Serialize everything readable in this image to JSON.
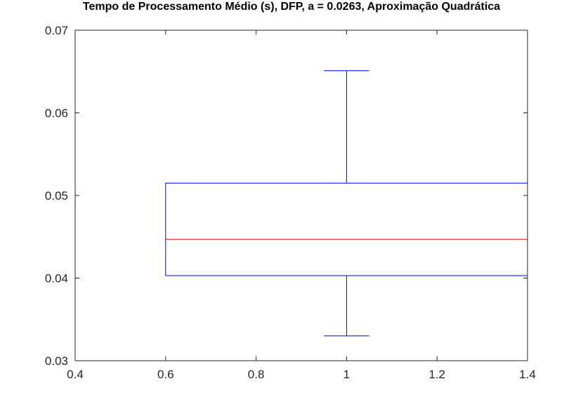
{
  "chart_data": {
    "type": "boxplot",
    "title": "Tempo de Processamento Médio (s), DFP, a = 0.0263, Aproximação Quadrática",
    "xlabel": "",
    "ylabel": "",
    "xlim": [
      0.4,
      1.4
    ],
    "ylim": [
      0.03,
      0.07
    ],
    "x_ticks": [
      0.4,
      0.6,
      0.8,
      1.0,
      1.2,
      1.4
    ],
    "x_tick_labels": [
      "0.4",
      "0.6",
      "0.8",
      "1",
      "1.2",
      "1.4"
    ],
    "y_ticks": [
      0.03,
      0.04,
      0.05,
      0.06,
      0.07
    ],
    "y_tick_labels": [
      "0.03",
      "0.04",
      "0.05",
      "0.06",
      "0.07"
    ],
    "box": {
      "position": 1,
      "box_left": 0.6,
      "box_right": 1.4,
      "whisker_cap_left": 0.95,
      "whisker_cap_right": 1.05,
      "whisker_low": 0.033,
      "q1": 0.0403,
      "median": 0.0447,
      "q3": 0.0515,
      "whisker_high": 0.0651
    },
    "colors": {
      "box": "#0000ff",
      "median": "#ff0000",
      "axes": "#262626"
    },
    "grid": false
  }
}
